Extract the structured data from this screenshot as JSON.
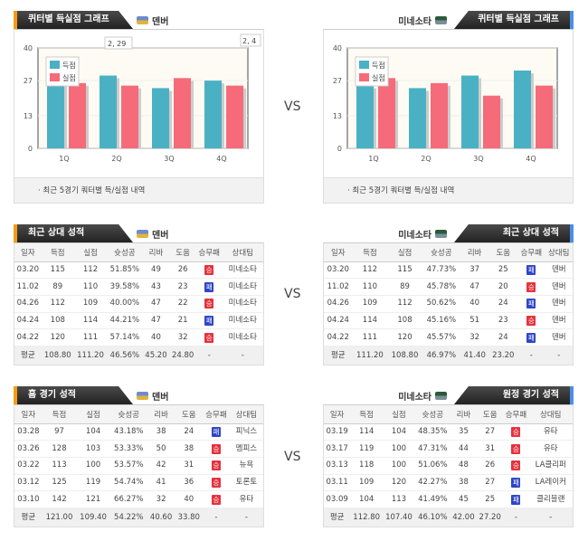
{
  "vs": "VS",
  "colors": {
    "scored": "#4ab1c4",
    "conceded": "#f56b7a",
    "win": "#e5323d",
    "loss": "#2f45c8",
    "accent_left": "#f39c12",
    "accent_right": "#4a8fe7"
  },
  "teams": {
    "left": "덴버",
    "right": "미네소타"
  },
  "charts": {
    "left": {
      "title": "퀴터별 득실점 그래프",
      "team": "덴버",
      "footer": "· 최근 5경기 쿼터별 득/실점 내역",
      "tooltips": [
        "2, 29",
        "2, 4"
      ]
    },
    "right": {
      "title": "퀴터별 득실점 그래프",
      "team": "미네소타",
      "footer": "· 최근 5경기 쿼터별 득/실점 내역"
    }
  },
  "chart_data": [
    {
      "type": "bar",
      "title": "덴버",
      "categories": [
        "1Q",
        "2Q",
        "3Q",
        "4Q"
      ],
      "series": [
        {
          "name": "득점",
          "values": [
            32,
            29,
            24,
            27
          ]
        },
        {
          "name": "실점",
          "values": [
            26,
            25,
            28,
            25
          ]
        }
      ],
      "ylim": [
        0,
        40
      ],
      "yticks": [
        0,
        13,
        27,
        40
      ],
      "legend": "top-left"
    },
    {
      "type": "bar",
      "title": "미네소타",
      "categories": [
        "1Q",
        "2Q",
        "3Q",
        "4Q"
      ],
      "series": [
        {
          "name": "득점",
          "values": [
            25,
            24,
            29,
            31
          ]
        },
        {
          "name": "실점",
          "values": [
            28,
            26,
            21,
            25
          ]
        }
      ],
      "ylim": [
        0,
        40
      ],
      "yticks": [
        0,
        13,
        27,
        40
      ],
      "legend": "top-left"
    }
  ],
  "columns": [
    "일자",
    "득점",
    "실점",
    "슛성공",
    "리바",
    "도움",
    "승무패",
    "상대팀"
  ],
  "tables": {
    "recent_left": {
      "title": "최근 상대 성적",
      "team": "덴버",
      "rows": [
        [
          "03.20",
          "115",
          "112",
          "51.85%",
          "49",
          "26",
          "승",
          "미네소타"
        ],
        [
          "11.02",
          "89",
          "110",
          "39.58%",
          "43",
          "23",
          "패",
          "미네소타"
        ],
        [
          "04.26",
          "112",
          "109",
          "40.00%",
          "47",
          "22",
          "승",
          "미네소타"
        ],
        [
          "04.24",
          "108",
          "114",
          "44.21%",
          "47",
          "21",
          "패",
          "미네소타"
        ],
        [
          "04.22",
          "120",
          "111",
          "57.14%",
          "40",
          "32",
          "승",
          "미네소타"
        ]
      ],
      "avg": [
        "평균",
        "108.80",
        "111.20",
        "46.56%",
        "45.20",
        "24.80",
        "-",
        "-"
      ]
    },
    "recent_right": {
      "title": "최근 상대 성적",
      "team": "미네소타",
      "rows": [
        [
          "03.20",
          "112",
          "115",
          "47.73%",
          "37",
          "25",
          "패",
          "덴버"
        ],
        [
          "11.02",
          "110",
          "89",
          "45.78%",
          "47",
          "20",
          "승",
          "덴버"
        ],
        [
          "04.26",
          "109",
          "112",
          "50.62%",
          "40",
          "24",
          "패",
          "덴버"
        ],
        [
          "04.24",
          "114",
          "108",
          "45.16%",
          "51",
          "23",
          "승",
          "덴버"
        ],
        [
          "04.22",
          "111",
          "120",
          "45.57%",
          "32",
          "24",
          "패",
          "덴버"
        ]
      ],
      "avg": [
        "평균",
        "111.20",
        "108.80",
        "46.97%",
        "41.40",
        "23.20",
        "-",
        "-"
      ]
    },
    "home_left": {
      "title": "홈 경기 성적",
      "team": "덴버",
      "rows": [
        [
          "03.28",
          "97",
          "104",
          "43.18%",
          "38",
          "24",
          "패",
          "피닉스"
        ],
        [
          "03.26",
          "128",
          "103",
          "53.33%",
          "50",
          "38",
          "승",
          "멤피스"
        ],
        [
          "03.22",
          "113",
          "100",
          "53.57%",
          "42",
          "31",
          "승",
          "뉴욕"
        ],
        [
          "03.12",
          "125",
          "119",
          "54.74%",
          "41",
          "36",
          "승",
          "토론토"
        ],
        [
          "03.10",
          "142",
          "121",
          "66.27%",
          "32",
          "40",
          "승",
          "유타"
        ]
      ],
      "avg": [
        "평균",
        "121.00",
        "109.40",
        "54.22%",
        "40.60",
        "33.80",
        "-",
        "-"
      ]
    },
    "away_right": {
      "title": "원정 경기 성적",
      "team": "미네소타",
      "rows": [
        [
          "03.19",
          "114",
          "104",
          "48.35%",
          "35",
          "27",
          "승",
          "유타"
        ],
        [
          "03.17",
          "119",
          "100",
          "47.31%",
          "44",
          "31",
          "승",
          "유타"
        ],
        [
          "03.13",
          "118",
          "100",
          "51.06%",
          "48",
          "26",
          "승",
          "LA클리퍼"
        ],
        [
          "03.11",
          "109",
          "120",
          "42.27%",
          "38",
          "27",
          "패",
          "LA레이커"
        ],
        [
          "03.09",
          "104",
          "113",
          "41.49%",
          "45",
          "25",
          "패",
          "클리블랜"
        ]
      ],
      "avg": [
        "평균",
        "112.80",
        "107.40",
        "46.10%",
        "42.00",
        "27.20",
        "-",
        "-"
      ]
    }
  }
}
